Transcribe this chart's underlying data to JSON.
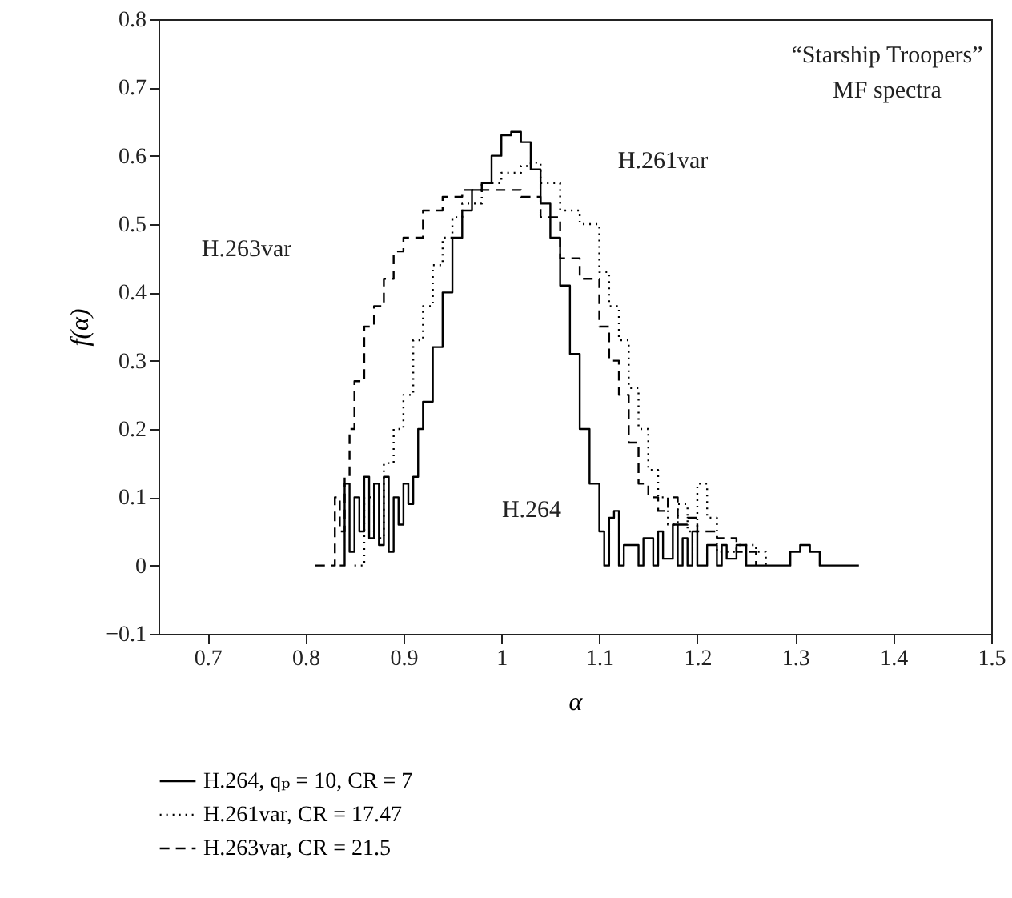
{
  "chart_data": {
    "type": "step",
    "xlabel": "α",
    "ylabel": "f(α)",
    "xlim": [
      0.65,
      1.5
    ],
    "xticks": [
      0.7,
      0.8,
      0.9,
      1,
      1.1,
      1.2,
      1.3,
      1.4,
      1.5
    ],
    "ylim": [
      -0.1,
      0.8
    ],
    "yticks": [
      -0.1,
      0,
      0.1,
      0.2,
      0.3,
      0.4,
      0.5,
      0.6,
      0.7,
      0.8
    ],
    "grid": false,
    "legend": "bottom",
    "marker": "none",
    "annotations": [
      "“Starship Troopers”",
      "MF spectra",
      "H.263var",
      "H.261var",
      "H.264"
    ],
    "series": [
      {
        "name": "H.264, qₚ = 10, CR = 7",
        "color": "#000000",
        "line_style": "solid",
        "x": [
          0.835,
          0.84,
          0.845,
          0.85,
          0.855,
          0.86,
          0.865,
          0.87,
          0.875,
          0.88,
          0.885,
          0.89,
          0.895,
          0.9,
          0.905,
          0.91,
          0.915,
          0.92,
          0.93,
          0.94,
          0.95,
          0.96,
          0.97,
          0.98,
          0.99,
          1.0,
          1.01,
          1.02,
          1.03,
          1.04,
          1.05,
          1.06,
          1.07,
          1.08,
          1.09,
          1.1,
          1.105,
          1.11,
          1.115,
          1.12,
          1.125,
          1.135,
          1.14,
          1.145,
          1.155,
          1.16,
          1.165,
          1.175,
          1.18,
          1.185,
          1.19,
          1.195,
          1.2,
          1.21,
          1.22,
          1.225,
          1.23,
          1.24,
          1.25,
          1.26,
          1.295,
          1.305,
          1.31,
          1.315,
          1.325,
          1.335,
          1.365
        ],
        "values": [
          0,
          0.12,
          0.02,
          0.1,
          0.05,
          0.13,
          0.04,
          0.12,
          0.03,
          0.13,
          0.02,
          0.1,
          0.06,
          0.12,
          0.09,
          0.13,
          0.2,
          0.24,
          0.32,
          0.4,
          0.48,
          0.52,
          0.55,
          0.56,
          0.6,
          0.63,
          0.635,
          0.62,
          0.58,
          0.53,
          0.48,
          0.41,
          0.31,
          0.2,
          0.12,
          0.05,
          0,
          0.07,
          0.08,
          0,
          0.03,
          0.03,
          0,
          0.04,
          0,
          0.05,
          0.01,
          0.06,
          0,
          0.04,
          0,
          0.05,
          0,
          0.03,
          0,
          0.03,
          0.01,
          0.03,
          0,
          0,
          0.02,
          0.03,
          0.03,
          0.02,
          0,
          0,
          0
        ]
      },
      {
        "name": "H.261var, CR = 17.47",
        "color": "#000000",
        "line_style": "dotted",
        "x": [
          0.85,
          0.86,
          0.87,
          0.88,
          0.89,
          0.9,
          0.91,
          0.92,
          0.93,
          0.94,
          0.95,
          0.96,
          0.98,
          1.0,
          1.02,
          1.03,
          1.04,
          1.06,
          1.08,
          1.1,
          1.11,
          1.12,
          1.13,
          1.14,
          1.15,
          1.16,
          1.17,
          1.18,
          1.19,
          1.2,
          1.21,
          1.22,
          1.24,
          1.26,
          1.27
        ],
        "values": [
          0,
          0.1,
          0.04,
          0.15,
          0.2,
          0.25,
          0.33,
          0.38,
          0.44,
          0.48,
          0.51,
          0.53,
          0.56,
          0.575,
          0.585,
          0.59,
          0.56,
          0.52,
          0.5,
          0.43,
          0.38,
          0.33,
          0.26,
          0.2,
          0.14,
          0.1,
          0.06,
          0.09,
          0.05,
          0.12,
          0.07,
          0.02,
          0.03,
          0.02,
          0
        ]
      },
      {
        "name": "H.263var, CR = 21.5",
        "color": "#000000",
        "line_style": "dashed",
        "x": [
          0.81,
          0.83,
          0.835,
          0.84,
          0.845,
          0.85,
          0.86,
          0.87,
          0.88,
          0.89,
          0.9,
          0.92,
          0.94,
          0.96,
          1.0,
          1.02,
          1.04,
          1.06,
          1.08,
          1.1,
          1.11,
          1.12,
          1.13,
          1.14,
          1.15,
          1.16,
          1.17,
          1.18,
          1.19,
          1.2,
          1.22,
          1.24,
          1.26
        ],
        "values": [
          0,
          0.1,
          0.05,
          0.13,
          0.2,
          0.27,
          0.35,
          0.38,
          0.42,
          0.46,
          0.48,
          0.52,
          0.54,
          0.55,
          0.55,
          0.54,
          0.51,
          0.45,
          0.42,
          0.35,
          0.3,
          0.25,
          0.18,
          0.12,
          0.1,
          0.08,
          0.1,
          0.06,
          0.07,
          0.05,
          0.04,
          0.02,
          0
        ]
      }
    ]
  }
}
